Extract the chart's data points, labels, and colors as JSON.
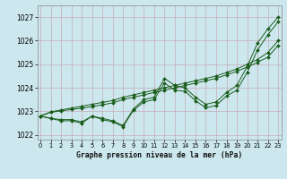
{
  "title": "Graphe pression niveau de la mer (hPa)",
  "bg_color": "#cce8ee",
  "grid_color": "#c8aab8",
  "line_color": "#1a5c1a",
  "xlim": [
    -0.3,
    23.3
  ],
  "ylim": [
    1021.8,
    1027.5
  ],
  "yticks": [
    1022,
    1023,
    1024,
    1025,
    1026,
    1027
  ],
  "xticks": [
    0,
    1,
    2,
    3,
    4,
    5,
    6,
    7,
    8,
    9,
    10,
    11,
    12,
    13,
    14,
    15,
    16,
    17,
    18,
    19,
    20,
    21,
    22,
    23
  ],
  "series_wavy1": [
    1022.8,
    1022.7,
    1022.6,
    1022.6,
    1022.5,
    1022.8,
    1022.7,
    1022.6,
    1022.4,
    1023.1,
    1023.5,
    1023.6,
    1024.4,
    1024.1,
    1024.0,
    1023.6,
    1023.3,
    1023.4,
    1023.8,
    1024.1,
    1024.9,
    1025.9,
    1026.5,
    1027.0
  ],
  "series_wavy2": [
    1022.8,
    1022.7,
    1022.65,
    1022.65,
    1022.55,
    1022.8,
    1022.65,
    1022.55,
    1022.35,
    1023.05,
    1023.4,
    1023.5,
    1024.2,
    1023.9,
    1023.85,
    1023.45,
    1023.15,
    1023.25,
    1023.65,
    1023.9,
    1024.65,
    1025.6,
    1026.25,
    1026.8
  ],
  "series_straight1": [
    1022.8,
    1022.98,
    1023.06,
    1023.14,
    1023.22,
    1023.3,
    1023.38,
    1023.46,
    1023.6,
    1023.7,
    1023.8,
    1023.9,
    1024.0,
    1024.1,
    1024.2,
    1024.3,
    1024.4,
    1024.5,
    1024.65,
    1024.8,
    1025.0,
    1025.2,
    1025.5,
    1026.0
  ],
  "series_straight2": [
    1022.8,
    1022.96,
    1023.02,
    1023.08,
    1023.14,
    1023.2,
    1023.28,
    1023.36,
    1023.5,
    1023.6,
    1023.7,
    1023.8,
    1023.9,
    1024.0,
    1024.1,
    1024.2,
    1024.3,
    1024.4,
    1024.55,
    1024.7,
    1024.88,
    1025.08,
    1025.3,
    1025.8
  ],
  "ylabel_fontsize": 5.5,
  "xlabel_fontsize": 5.8,
  "tick_fontsize": 4.8
}
